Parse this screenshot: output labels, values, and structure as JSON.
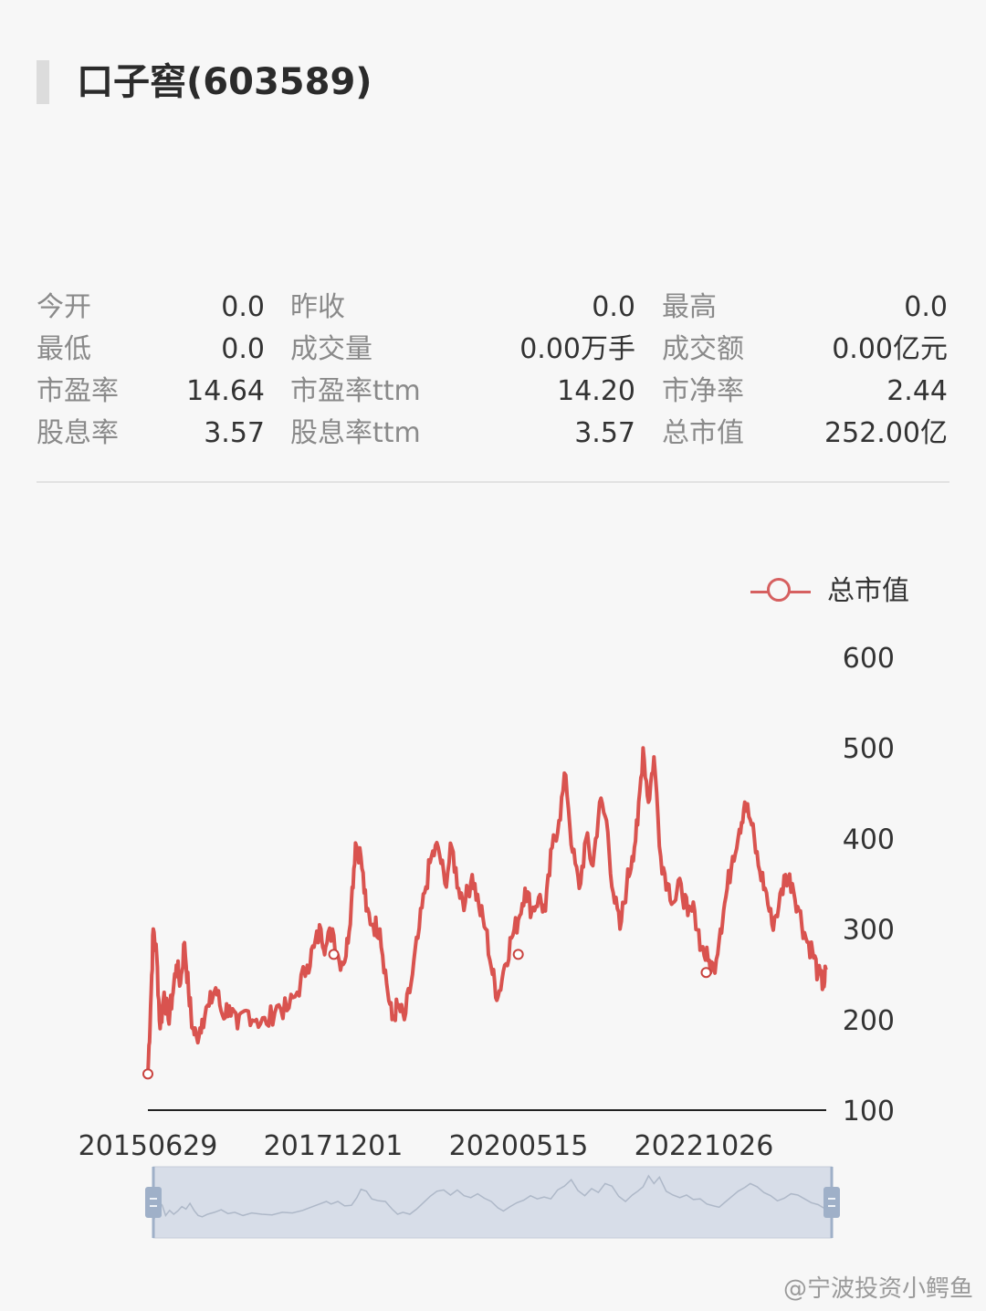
{
  "header": {
    "title": "口子窖(603589)"
  },
  "quote": {
    "rows": [
      [
        {
          "label": "今开",
          "value": "0.0"
        },
        {
          "label": "昨收",
          "value": "0.0"
        },
        {
          "label": "最高",
          "value": "0.0"
        }
      ],
      [
        {
          "label": "最低",
          "value": "0.0"
        },
        {
          "label": "成交量",
          "value": "0.00万手"
        },
        {
          "label": "成交额",
          "value": "0.00亿元"
        }
      ],
      [
        {
          "label": "市盈率",
          "value": "14.64"
        },
        {
          "label": "市盈率ttm",
          "value": "14.20"
        },
        {
          "label": "市净率",
          "value": "2.44"
        }
      ],
      [
        {
          "label": "股息率",
          "value": "3.57"
        },
        {
          "label": "股息率ttm",
          "value": "3.57"
        },
        {
          "label": "总市值",
          "value": "252.00亿"
        }
      ]
    ]
  },
  "chart_data": {
    "type": "line",
    "legend": [
      "总市值"
    ],
    "legend_position": "top-right",
    "y_axis_position": "right",
    "ylim": [
      100,
      600
    ],
    "yticks": [
      "100",
      "200",
      "300",
      "400",
      "500",
      "600"
    ],
    "xticks": [
      "20150629",
      "20171201",
      "20200515",
      "20221026"
    ],
    "grid": false,
    "colors": {
      "line": "#d9534f",
      "marker": "#c9423e",
      "axis": "#222222",
      "zoom_fill": "#d7dde8",
      "zoom_handle": "#9fb0c8"
    },
    "has_zoom_slider": true,
    "series": [
      {
        "name": "总市值",
        "points": [
          [
            0.0,
            140
          ],
          [
            0.004,
            215
          ],
          [
            0.008,
            300
          ],
          [
            0.013,
            270
          ],
          [
            0.018,
            190
          ],
          [
            0.024,
            230
          ],
          [
            0.03,
            200
          ],
          [
            0.036,
            225
          ],
          [
            0.042,
            260
          ],
          [
            0.048,
            240
          ],
          [
            0.054,
            285
          ],
          [
            0.06,
            230
          ],
          [
            0.066,
            190
          ],
          [
            0.072,
            180
          ],
          [
            0.08,
            200
          ],
          [
            0.09,
            215
          ],
          [
            0.1,
            235
          ],
          [
            0.11,
            205
          ],
          [
            0.12,
            215
          ],
          [
            0.132,
            190
          ],
          [
            0.145,
            210
          ],
          [
            0.16,
            200
          ],
          [
            0.175,
            195
          ],
          [
            0.19,
            215
          ],
          [
            0.205,
            210
          ],
          [
            0.22,
            230
          ],
          [
            0.235,
            260
          ],
          [
            0.245,
            280
          ],
          [
            0.255,
            300
          ],
          [
            0.262,
            280
          ],
          [
            0.272,
            300
          ],
          [
            0.282,
            265
          ],
          [
            0.292,
            270
          ],
          [
            0.3,
            330
          ],
          [
            0.306,
            395
          ],
          [
            0.314,
            380
          ],
          [
            0.322,
            320
          ],
          [
            0.332,
            305
          ],
          [
            0.342,
            300
          ],
          [
            0.352,
            240
          ],
          [
            0.36,
            200
          ],
          [
            0.368,
            215
          ],
          [
            0.378,
            200
          ],
          [
            0.388,
            240
          ],
          [
            0.398,
            290
          ],
          [
            0.408,
            340
          ],
          [
            0.418,
            380
          ],
          [
            0.428,
            390
          ],
          [
            0.438,
            350
          ],
          [
            0.448,
            390
          ],
          [
            0.458,
            345
          ],
          [
            0.468,
            330
          ],
          [
            0.478,
            360
          ],
          [
            0.488,
            325
          ],
          [
            0.498,
            300
          ],
          [
            0.508,
            250
          ],
          [
            0.516,
            225
          ],
          [
            0.526,
            260
          ],
          [
            0.536,
            290
          ],
          [
            0.546,
            310
          ],
          [
            0.556,
            345
          ],
          [
            0.566,
            320
          ],
          [
            0.576,
            335
          ],
          [
            0.586,
            320
          ],
          [
            0.596,
            390
          ],
          [
            0.606,
            420
          ],
          [
            0.616,
            470
          ],
          [
            0.626,
            385
          ],
          [
            0.636,
            345
          ],
          [
            0.646,
            400
          ],
          [
            0.656,
            370
          ],
          [
            0.666,
            440
          ],
          [
            0.676,
            420
          ],
          [
            0.686,
            340
          ],
          [
            0.696,
            300
          ],
          [
            0.706,
            350
          ],
          [
            0.714,
            380
          ],
          [
            0.722,
            415
          ],
          [
            0.73,
            500
          ],
          [
            0.738,
            440
          ],
          [
            0.746,
            490
          ],
          [
            0.756,
            380
          ],
          [
            0.766,
            350
          ],
          [
            0.776,
            330
          ],
          [
            0.786,
            350
          ],
          [
            0.796,
            315
          ],
          [
            0.806,
            320
          ],
          [
            0.816,
            280
          ],
          [
            0.826,
            265
          ],
          [
            0.834,
            255
          ],
          [
            0.844,
            300
          ],
          [
            0.852,
            335
          ],
          [
            0.862,
            380
          ],
          [
            0.872,
            410
          ],
          [
            0.88,
            440
          ],
          [
            0.89,
            415
          ],
          [
            0.9,
            370
          ],
          [
            0.91,
            345
          ],
          [
            0.92,
            305
          ],
          [
            0.93,
            325
          ],
          [
            0.94,
            360
          ],
          [
            0.95,
            350
          ],
          [
            0.96,
            320
          ],
          [
            0.97,
            290
          ],
          [
            0.98,
            275
          ],
          [
            0.988,
            250
          ],
          [
            0.996,
            238
          ],
          [
            1.0,
            255
          ]
        ],
        "markers": [
          [
            0.0,
            140
          ],
          [
            0.274,
            272
          ],
          [
            0.546,
            272
          ],
          [
            0.823,
            252
          ]
        ]
      }
    ]
  },
  "watermark": "@宁波投资小鳄鱼"
}
